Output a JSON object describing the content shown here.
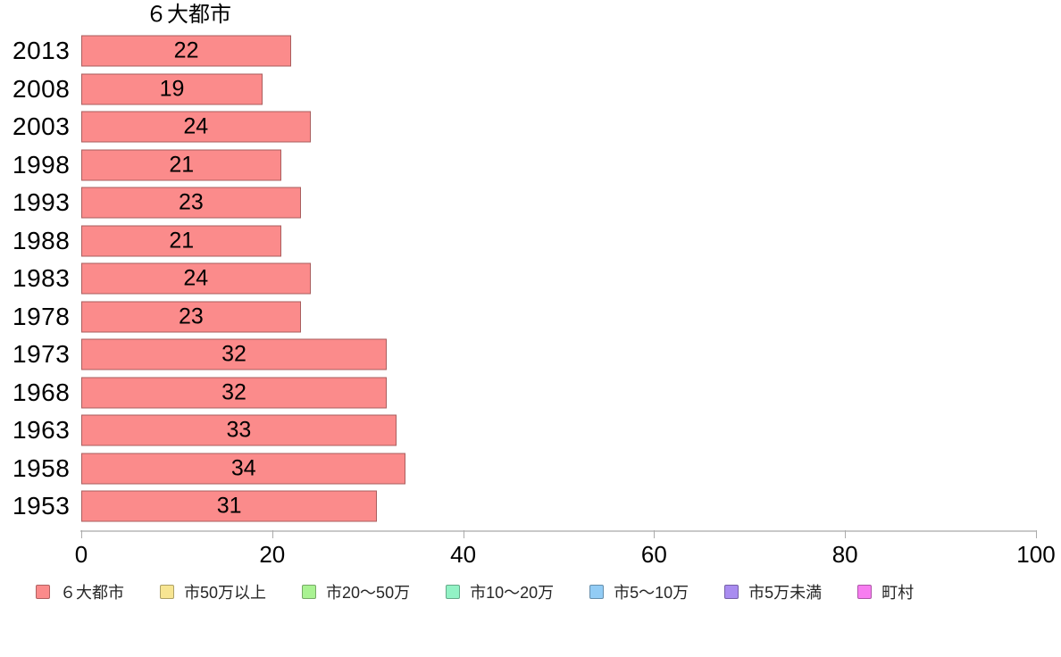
{
  "chart_data": {
    "type": "bar",
    "orientation": "horizontal",
    "title": "６大都市",
    "categories": [
      "2013",
      "2008",
      "2003",
      "1998",
      "1993",
      "1988",
      "1983",
      "1978",
      "1973",
      "1968",
      "1963",
      "1958",
      "1953"
    ],
    "values": [
      22,
      19,
      24,
      21,
      23,
      21,
      24,
      23,
      32,
      32,
      33,
      34,
      31
    ],
    "xlabel": "",
    "ylabel": "",
    "xlim": [
      0,
      100
    ],
    "x_ticks": [
      0,
      20,
      40,
      60,
      80,
      100
    ],
    "grid": false,
    "bar_fill_color": "#fb8b8b",
    "bar_border_color": "rgba(0,0,0,0.32)",
    "axis_line_color": "#c9c9c9",
    "legend_position": "bottom",
    "legend": [
      {
        "label": "６大都市",
        "color": "#fb8b8b"
      },
      {
        "label": "市50万以上",
        "color": "#f7e592"
      },
      {
        "label": "市20〜50万",
        "color": "#a9f292"
      },
      {
        "label": "市10〜20万",
        "color": "#92f2c5"
      },
      {
        "label": "市5〜10万",
        "color": "#92ccf5"
      },
      {
        "label": "市5万未満",
        "color": "#a98cf0"
      },
      {
        "label": "町村",
        "color": "#f77df0"
      }
    ]
  }
}
